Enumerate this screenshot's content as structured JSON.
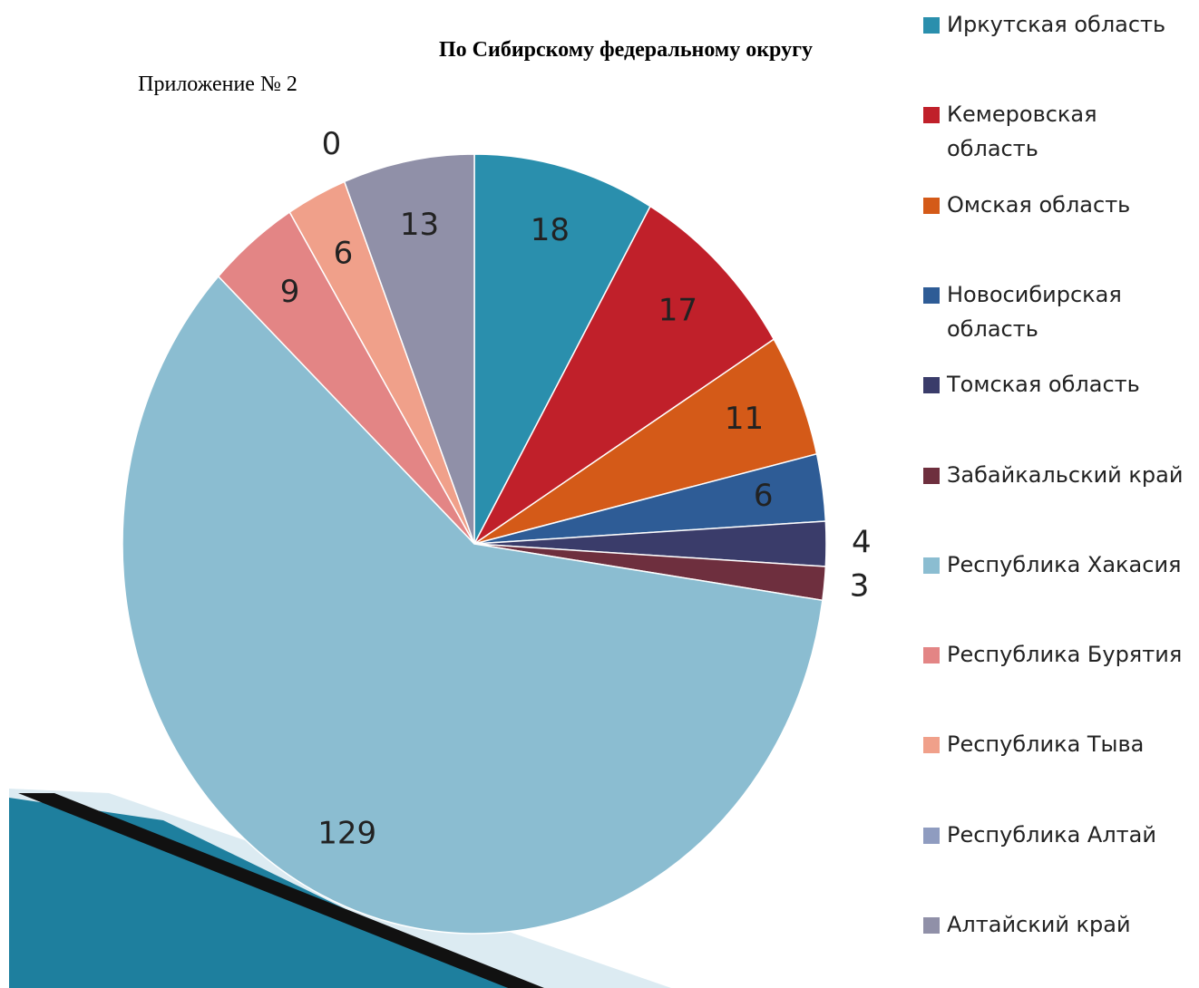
{
  "chart_data": {
    "type": "pie",
    "title": "По Сибирскому федеральному округу",
    "subtitle": "Приложение № 2",
    "categories": [
      "Иркутская область",
      "Кемеровская область",
      "Омская область",
      "Новосибирская область",
      "Томская область",
      "Забайкальский край",
      "Республика Хакасия",
      "Республика Бурятия",
      "Республика Тыва",
      "Республика Алтай",
      "Алтайский край"
    ],
    "values": [
      18,
      17,
      11,
      6,
      4,
      3,
      129,
      9,
      6,
      0,
      13
    ],
    "colors": [
      "#2a8fad",
      "#c0202a",
      "#d45a18",
      "#2e5c96",
      "#3a3c6a",
      "#6e2f3e",
      "#8bbdd1",
      "#e38585",
      "#f0a08a",
      "#8f9cc0",
      "#9090a8"
    ],
    "legend": "right"
  }
}
